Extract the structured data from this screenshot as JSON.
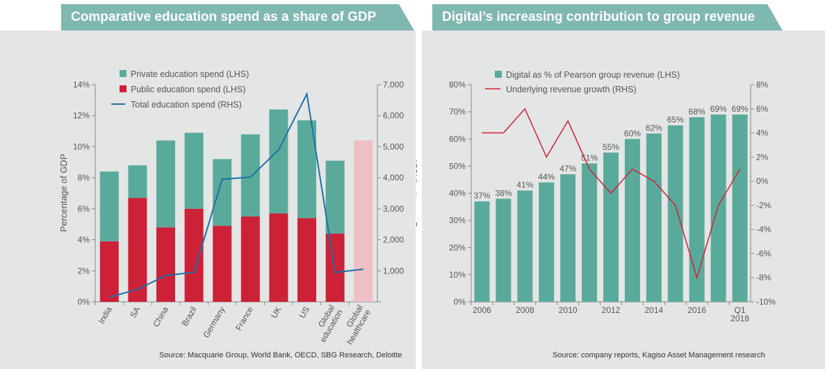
{
  "left": {
    "title": "Comparative education spend as a share of GDP",
    "source": "Source: Macquarie Group, World Bank, OECD, SBG Research, Deloitte",
    "colors": {
      "private": "#5aaa9c",
      "public": "#cc2136",
      "total": "#1d71a6",
      "healthcare": "#eebfc3"
    },
    "chart_data": {
      "type": "bar",
      "stacked": true,
      "categories": [
        "India",
        "SA",
        "China",
        "Brazil",
        "Germany",
        "France",
        "UK",
        "US",
        "Global education",
        "Global healthcare"
      ],
      "category_labels": [
        [
          "India"
        ],
        [
          "SA"
        ],
        [
          "China"
        ],
        [
          "Brazil"
        ],
        [
          "Germany"
        ],
        [
          "France"
        ],
        [
          "UK"
        ],
        [
          "US"
        ],
        [
          "Global",
          "education"
        ],
        [
          "Global",
          "healthcare"
        ]
      ],
      "series": [
        {
          "name": "Private education spend (LHS)",
          "values": [
            4.5,
            2.1,
            5.6,
            4.9,
            4.3,
            5.3,
            6.7,
            6.3,
            4.7,
            null
          ]
        },
        {
          "name": "Public education spend (LHS)",
          "values": [
            3.9,
            6.7,
            4.8,
            6.0,
            4.9,
            5.5,
            5.7,
            5.4,
            4.4,
            null
          ]
        },
        {
          "name": "Total education spend (RHS)",
          "axis": "right",
          "type": "line",
          "values": [
            150,
            400,
            850,
            950,
            3950,
            4020,
            4900,
            6700,
            950,
            1050
          ]
        }
      ],
      "extra_bar": {
        "category": "Global healthcare",
        "value": 10.4
      },
      "ylabel": "Percentage of GDP",
      "ylim": [
        0,
        14
      ],
      "yticks": [
        "0%",
        "2%",
        "4%",
        "6%",
        "8%",
        "10%",
        "12%",
        "14%"
      ],
      "y2label": "Per capita (USD)",
      "y2lim": [
        0,
        7000
      ],
      "y2ticks": [
        "",
        "1,000",
        "2,000",
        "3,000",
        "4,000",
        "5,000",
        "6,000",
        "7,000"
      ],
      "legend_position": "top"
    }
  },
  "right": {
    "title": "Digital’s increasing contribution to group revenue",
    "source": "Source: company reports, Kagiso Asset Management research",
    "colors": {
      "digital": "#5aaa9c",
      "growth": "#cc2136"
    },
    "chart_data": {
      "type": "bar",
      "categories": [
        "2006",
        "2007",
        "2008",
        "2009",
        "2010",
        "2011",
        "2012",
        "2013",
        "2014",
        "2015",
        "2016",
        "2017",
        "Q1 2018"
      ],
      "x_tick_labels": [
        [
          "2006"
        ],
        [
          ""
        ],
        [
          "2008"
        ],
        [
          ""
        ],
        [
          "2010"
        ],
        [
          ""
        ],
        [
          "2012"
        ],
        [
          ""
        ],
        [
          "2014"
        ],
        [
          ""
        ],
        [
          "2016"
        ],
        [
          ""
        ],
        [
          "Q1",
          "2018"
        ]
      ],
      "series": [
        {
          "name": "Digital as % of Pearson group revenue (LHS)",
          "values": [
            37,
            38,
            41,
            44,
            47,
            51,
            55,
            60,
            62,
            65,
            68,
            69,
            69
          ]
        },
        {
          "name": "Underlying revenue growth (RHS)",
          "axis": "right",
          "type": "line",
          "values": [
            4,
            4,
            6,
            2,
            5,
            1,
            -1,
            1,
            0,
            -2,
            -8,
            -2,
            1
          ]
        }
      ],
      "data_labels": [
        "37%",
        "38%",
        "41%",
        "44%",
        "47%",
        "51%",
        "55%",
        "60%",
        "62%",
        "65%",
        "68%",
        "69%",
        "69%"
      ],
      "ylim": [
        0,
        80
      ],
      "yticks": [
        "0%",
        "10%",
        "20%",
        "30%",
        "40%",
        "50%",
        "60%",
        "70%",
        "80%"
      ],
      "y2lim": [
        -10,
        8
      ],
      "y2ticks": [
        "-10%",
        "-8%",
        "-6%",
        "-4%",
        "-2%",
        "0%",
        "2%",
        "4%",
        "6%",
        "8%"
      ],
      "legend_position": "top"
    }
  }
}
